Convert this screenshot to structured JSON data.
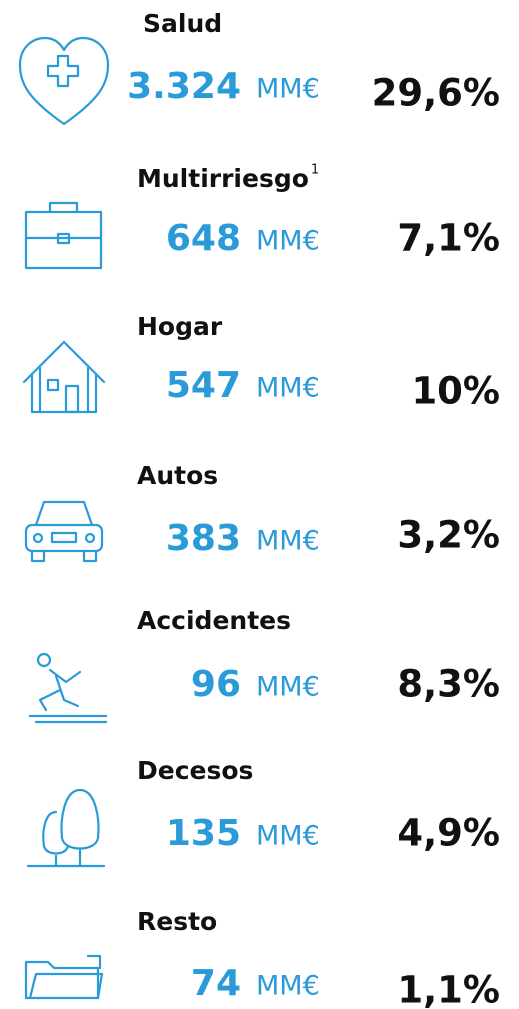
{
  "items": [
    {
      "label": "Salud",
      "amount": "3.324",
      "unit": "MM€",
      "pct": "29,6%"
    },
    {
      "label": "Multirriesgo",
      "sup": "1",
      "amount": "648",
      "unit": "MM€",
      "pct": "7,1%"
    },
    {
      "label": "Hogar",
      "amount": "547",
      "unit": "MM€",
      "pct": "10%"
    },
    {
      "label": "Autos",
      "amount": "383",
      "unit": "MM€",
      "pct": "3,2%"
    },
    {
      "label": "Accidentes",
      "amount": "96",
      "unit": "MM€",
      "pct": "8,3%"
    },
    {
      "label": "Decesos",
      "amount": "135",
      "unit": "MM€",
      "pct": "4,9%"
    },
    {
      "label": "Resto",
      "amount": "74",
      "unit": "MM€",
      "pct": "1,1%"
    }
  ]
}
